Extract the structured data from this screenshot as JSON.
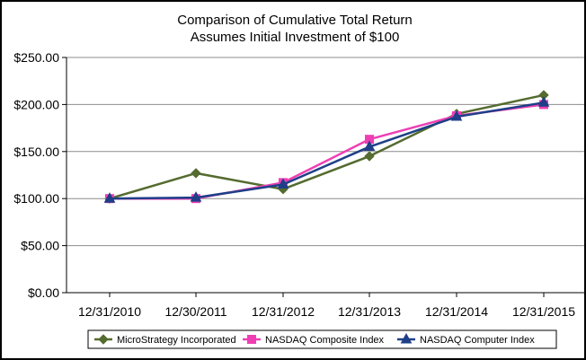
{
  "chart_data": {
    "type": "line",
    "title": "Comparison of  Cumulative Total Return",
    "subtitle": "Assumes Initial Investment of $100",
    "xlabel": "",
    "ylabel": "",
    "categories": [
      "12/31/2010",
      "12/30/2011",
      "12/31/2012",
      "12/31/2013",
      "12/31/2014",
      "12/31/2015"
    ],
    "ylim": [
      0,
      250
    ],
    "yticks": [
      0,
      50,
      100,
      150,
      200,
      250
    ],
    "ytick_labels": [
      "$0.00",
      "$50.00",
      "$100.00",
      "$150.00",
      "$200.00",
      "$250.00"
    ],
    "grid": "horizontal",
    "legend_position": "bottom",
    "series": [
      {
        "name": "MicroStrategy Incorporated",
        "color": "#556B2F",
        "marker": "diamond",
        "values": [
          100,
          127,
          110,
          145,
          190,
          210
        ]
      },
      {
        "name": "NASDAQ Composite Index",
        "color": "#EE3FB4",
        "marker": "square",
        "values": [
          100,
          100,
          117,
          163,
          188,
          200
        ]
      },
      {
        "name": "NASDAQ Computer Index",
        "color": "#1F3F88",
        "marker": "triangle",
        "values": [
          100,
          101,
          115,
          155,
          187,
          202
        ]
      }
    ]
  }
}
